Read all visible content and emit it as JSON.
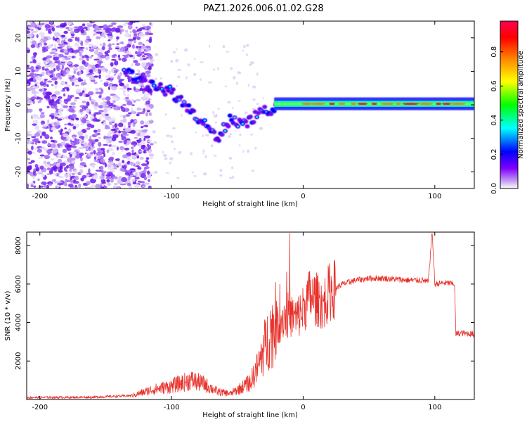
{
  "figure": {
    "title": "PAZ1.2026.006.01.02.G28"
  },
  "chart_data": [
    {
      "type": "heatmap",
      "xlabel": "Height of straight line (km)",
      "ylabel": "Frequency (Hz)",
      "xlim": [
        -210,
        130
      ],
      "ylim": [
        -25,
        25
      ],
      "xticks": [
        -200,
        -100,
        0,
        100
      ],
      "xtick_labels": [
        "-200",
        "-100",
        "0",
        "100"
      ],
      "yticks": [
        -20,
        -10,
        0,
        10,
        20
      ],
      "ytick_labels": [
        "-20",
        "-10",
        "0",
        "10",
        "20"
      ],
      "colorbar": {
        "label": "Normalized spectral amplitude",
        "range": [
          0,
          0.98
        ],
        "ticks": [
          0.0,
          0.2,
          0.4,
          0.6,
          0.8
        ],
        "tick_labels": [
          "0.0",
          "0.2",
          "0.4",
          "0.6",
          "0.8"
        ],
        "colors": [
          "#ffffff",
          "#c8a8f0",
          "#8000ff",
          "#0000ff",
          "#00ffff",
          "#00ff00",
          "#ffff00",
          "#ff8000",
          "#ff0000",
          "#ff0050"
        ]
      },
      "ridge": {
        "x": [
          -135,
          -120,
          -100,
          -85,
          -75,
          -65,
          -55,
          -45,
          -38,
          -30,
          -20,
          -10,
          0,
          10,
          20,
          40,
          60,
          80,
          100,
          120,
          130
        ],
        "y": [
          10,
          6,
          4,
          -2,
          -6,
          -10,
          -4,
          -6,
          -4,
          -2,
          -1,
          0,
          1,
          0,
          0,
          0,
          0.5,
          0.5,
          0.5,
          1,
          1
        ]
      }
    },
    {
      "type": "line",
      "xlabel": "Height of straight line (km)",
      "ylabel": "SNR (10 * v/v)",
      "xlim": [
        -210,
        130
      ],
      "ylim": [
        0,
        8700
      ],
      "xticks": [
        -200,
        -100,
        0,
        100
      ],
      "xtick_labels": [
        "-200",
        "-100",
        "0",
        "100"
      ],
      "yticks": [
        2000,
        4000,
        6000,
        8000
      ],
      "ytick_labels": [
        "2000",
        "4000",
        "6000",
        "8000"
      ],
      "color": "#e02020",
      "envelope": {
        "x": [
          -210,
          -160,
          -130,
          -115,
          -100,
          -85,
          -75,
          -65,
          -55,
          -45,
          -40,
          -35,
          -30,
          -25,
          -20,
          -15,
          -10,
          -5,
          0,
          5,
          10,
          15,
          20,
          30,
          40,
          50,
          60,
          70,
          80,
          90,
          95,
          98,
          100,
          105,
          110,
          115,
          116,
          120,
          130
        ],
        "y": [
          100,
          120,
          200,
          500,
          700,
          1000,
          800,
          400,
          300,
          700,
          900,
          1600,
          2600,
          3500,
          3800,
          4300,
          4400,
          4200,
          4700,
          5400,
          5200,
          5000,
          5600,
          6000,
          6200,
          6300,
          6300,
          6250,
          6200,
          6200,
          6100,
          8700,
          6000,
          6050,
          6050,
          6000,
          3400,
          3450,
          3400
        ]
      }
    }
  ]
}
